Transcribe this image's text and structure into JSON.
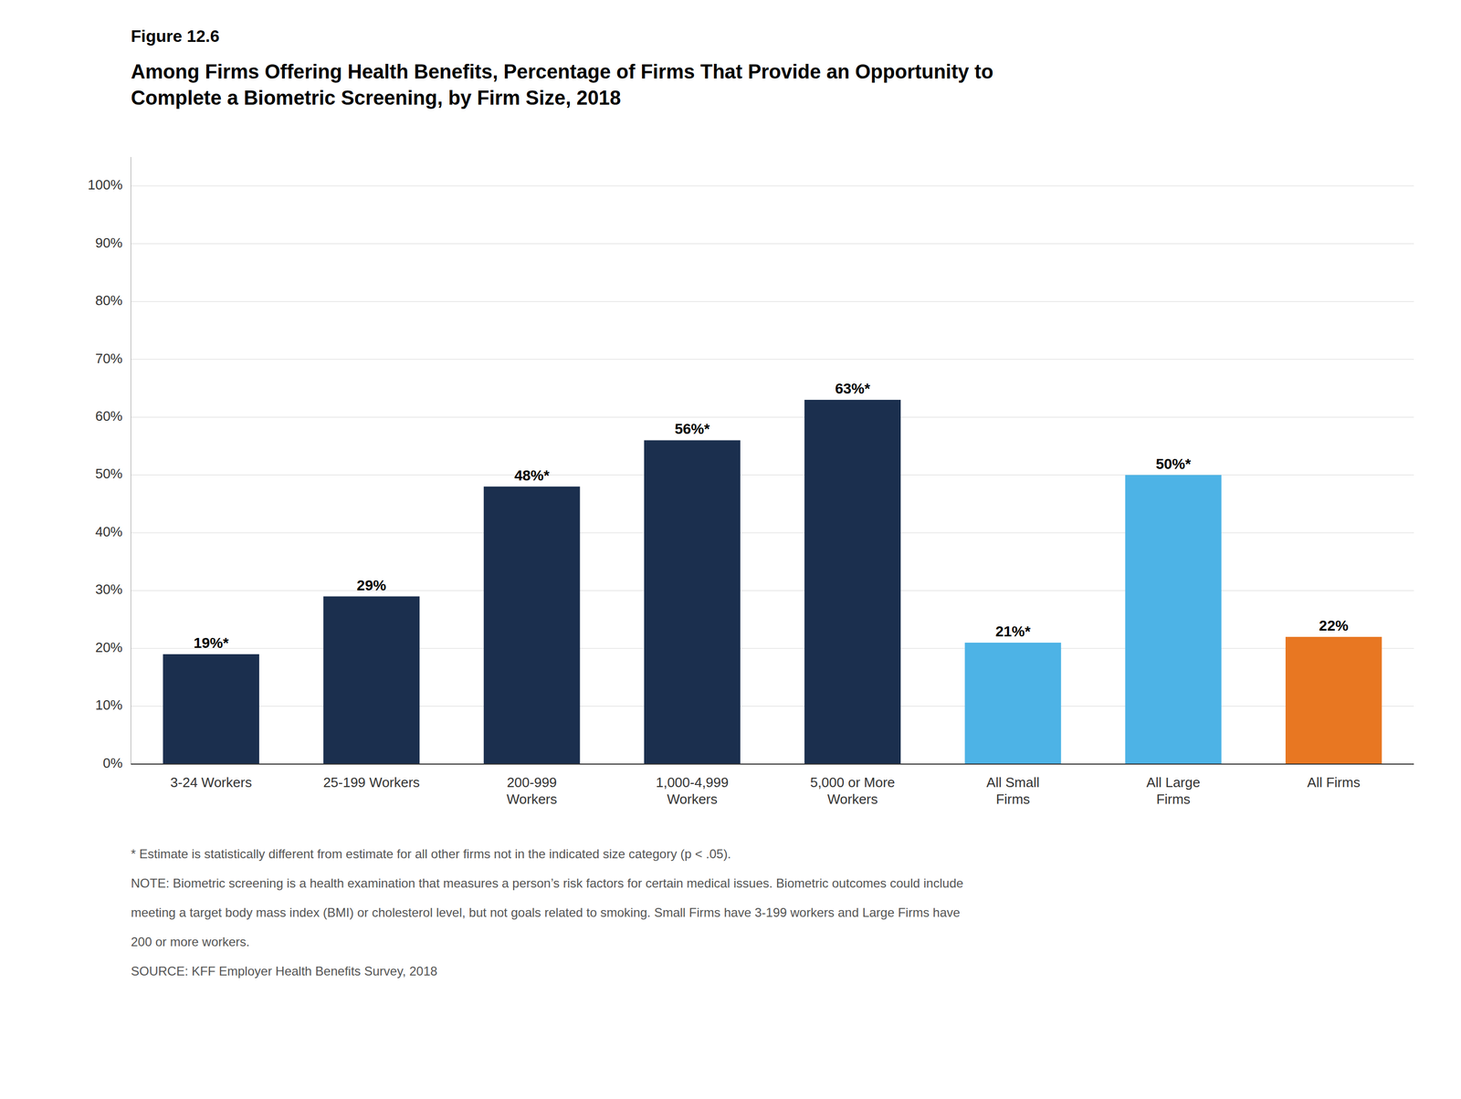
{
  "chart_data": {
    "type": "bar",
    "figure_label": "Figure 12.6",
    "title": [
      "Among Firms Offering Health Benefits, Percentage of Firms That Provide an Opportunity to",
      "Complete a Biometric Screening, by Firm Size, 2018"
    ],
    "categories": [
      "3-24 Workers",
      "25-199 Workers",
      "200-999\nWorkers",
      "1,000-4,999\nWorkers",
      "5,000 or More\nWorkers",
      "All Small\nFirms",
      "All Large\nFirms",
      "All Firms"
    ],
    "values": [
      19,
      29,
      48,
      56,
      63,
      21,
      50,
      22
    ],
    "value_labels": [
      "19%*",
      "29%",
      "48%*",
      "56%*",
      "63%*",
      "21%*",
      "50%*",
      "22%"
    ],
    "colors": [
      "#1b2f4e",
      "#1b2f4e",
      "#1b2f4e",
      "#1b2f4e",
      "#1b2f4e",
      "#4db3e6",
      "#4db3e6",
      "#e87722"
    ],
    "data_labels": true,
    "ylim": [
      0,
      105
    ],
    "yticks": [
      {
        "value": 0,
        "label": "0%"
      },
      {
        "value": 10,
        "label": "10%"
      },
      {
        "value": 20,
        "label": "20%"
      },
      {
        "value": 30,
        "label": "30%"
      },
      {
        "value": 40,
        "label": "40%"
      },
      {
        "value": 50,
        "label": "50%"
      },
      {
        "value": 60,
        "label": "60%"
      },
      {
        "value": 70,
        "label": "70%"
      },
      {
        "value": 80,
        "label": "80%"
      },
      {
        "value": 90,
        "label": "90%"
      },
      {
        "value": 100,
        "label": "100%"
      }
    ],
    "grid": true,
    "footnotes": [
      "* Estimate is statistically different from estimate for all other firms not in the indicated size category (p < .05).",
      "NOTE: Biometric screening is a health examination that measures a person’s risk factors for certain medical issues. Biometric outcomes could include",
      "meeting a target body mass index (BMI) or cholesterol level, but not goals related to smoking. Small Firms have 3-199 workers and Large Firms have",
      "200 or more workers.",
      "SOURCE: KFF Employer Health Benefits Survey, 2018"
    ]
  }
}
